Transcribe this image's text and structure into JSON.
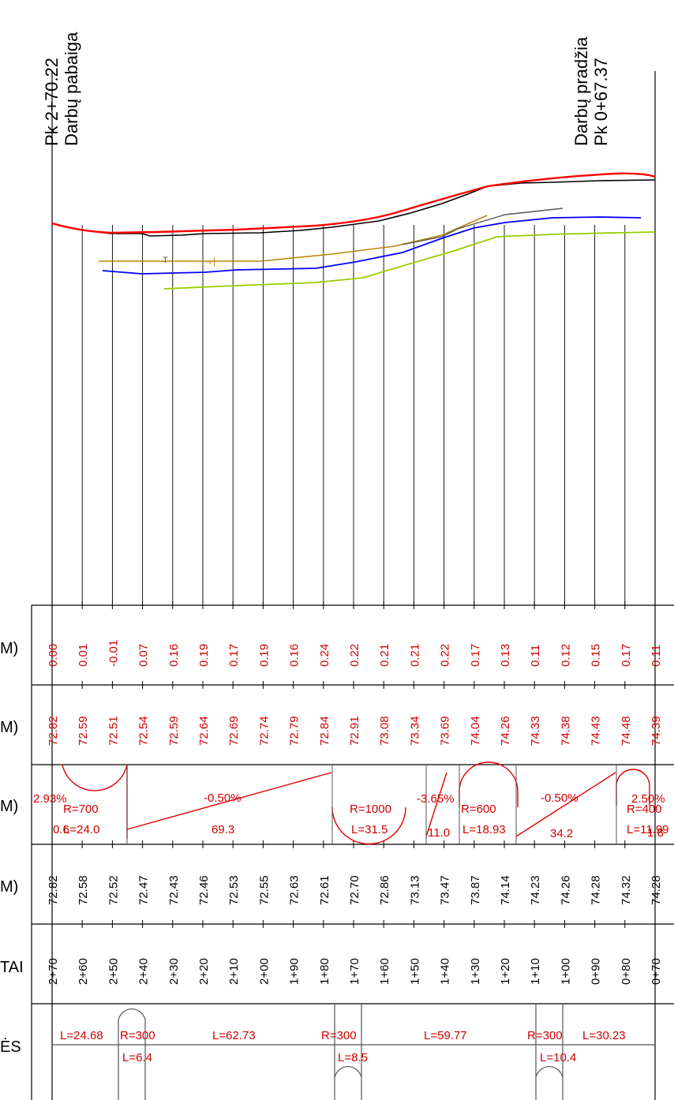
{
  "header": {
    "end_station": "Pk 2+70.22",
    "end_label": "Darbų pabaiga",
    "start_label": "Darbų pradžia",
    "start_station": "Pk 0+67.37"
  },
  "rows": {
    "depth_label": "M)",
    "existing_label": "M)",
    "grade_label": "M)",
    "design_label": "M)",
    "stations_label": "TAI",
    "plan_label": "ĖS"
  },
  "columns": [
    {
      "station": "2+70",
      "depth": "0.00",
      "existing": "72.82",
      "design": "72.82"
    },
    {
      "station": "2+60",
      "depth": "0.01",
      "existing": "72.59",
      "design": "72.58"
    },
    {
      "station": "2+50",
      "depth": "-0.01",
      "existing": "72.51",
      "design": "72.52"
    },
    {
      "station": "2+40",
      "depth": "0.07",
      "existing": "72.54",
      "design": "72.47"
    },
    {
      "station": "2+30",
      "depth": "0.16",
      "existing": "72.59",
      "design": "72.43"
    },
    {
      "station": "2+20",
      "depth": "0.19",
      "existing": "72.64",
      "design": "72.46"
    },
    {
      "station": "2+10",
      "depth": "0.17",
      "existing": "72.69",
      "design": "72.53"
    },
    {
      "station": "2+00",
      "depth": "0.19",
      "existing": "72.74",
      "design": "72.55"
    },
    {
      "station": "1+90",
      "depth": "0.16",
      "existing": "72.79",
      "design": "72.63"
    },
    {
      "station": "1+80",
      "depth": "0.24",
      "existing": "72.84",
      "design": "72.61"
    },
    {
      "station": "1+70",
      "depth": "0.22",
      "existing": "72.91",
      "design": "72.70"
    },
    {
      "station": "1+60",
      "depth": "0.21",
      "existing": "73.08",
      "design": "72.86"
    },
    {
      "station": "1+50",
      "depth": "0.21",
      "existing": "73.34",
      "design": "73.13"
    },
    {
      "station": "1+40",
      "depth": "0.22",
      "existing": "73.69",
      "design": "73.47"
    },
    {
      "station": "1+30",
      "depth": "0.17",
      "existing": "74.04",
      "design": "73.87"
    },
    {
      "station": "1+20",
      "depth": "0.13",
      "existing": "74.26",
      "design": "74.14"
    },
    {
      "station": "1+10",
      "depth": "0.11",
      "existing": "74.33",
      "design": "74.23"
    },
    {
      "station": "1+00",
      "depth": "0.12",
      "existing": "74.38",
      "design": "74.26"
    },
    {
      "station": "0+90",
      "depth": "0.15",
      "existing": "74.43",
      "design": "74.28"
    },
    {
      "station": "0+80",
      "depth": "0.17",
      "existing": "74.48",
      "design": "74.32"
    },
    {
      "station": "0+70",
      "depth": "0.11",
      "existing": "74.39",
      "design": "74.28"
    }
  ],
  "grade_labels": {
    "g1": "2.93%",
    "g2": "R=700",
    "g3": "L=24.0",
    "g4": "0.6",
    "g5": "-0.50%",
    "g6": "69.3",
    "g7": "R=1000",
    "g8": "L=31.5",
    "g9": "-3.65%",
    "g10": "11.0",
    "g11": "R=600",
    "g12": "L=18.93",
    "g13": "-0.50%",
    "g14": "34.2",
    "g15": "R=400",
    "g16": "L=11.99",
    "g17": "2.50%",
    "g18": "1.8"
  },
  "plan_labels": {
    "p1": "L=24.68",
    "p2": "R=300",
    "p3": "L=6.4",
    "p4": "L=62.73",
    "p5": "R=300",
    "p6": "L=8.5",
    "p7": "L=59.77",
    "p8": "R=300",
    "p9": "L=10.4",
    "p10": "L=30.23"
  },
  "colors": {
    "existing_ground": "#000000",
    "design_line": "#ff0000",
    "utility_blue": "#0000ff",
    "utility_green": "#99cc00",
    "utility_brown": "#b8860b",
    "utility_gray": "#555555",
    "grid": "#000000",
    "value_text": "#d00000"
  }
}
